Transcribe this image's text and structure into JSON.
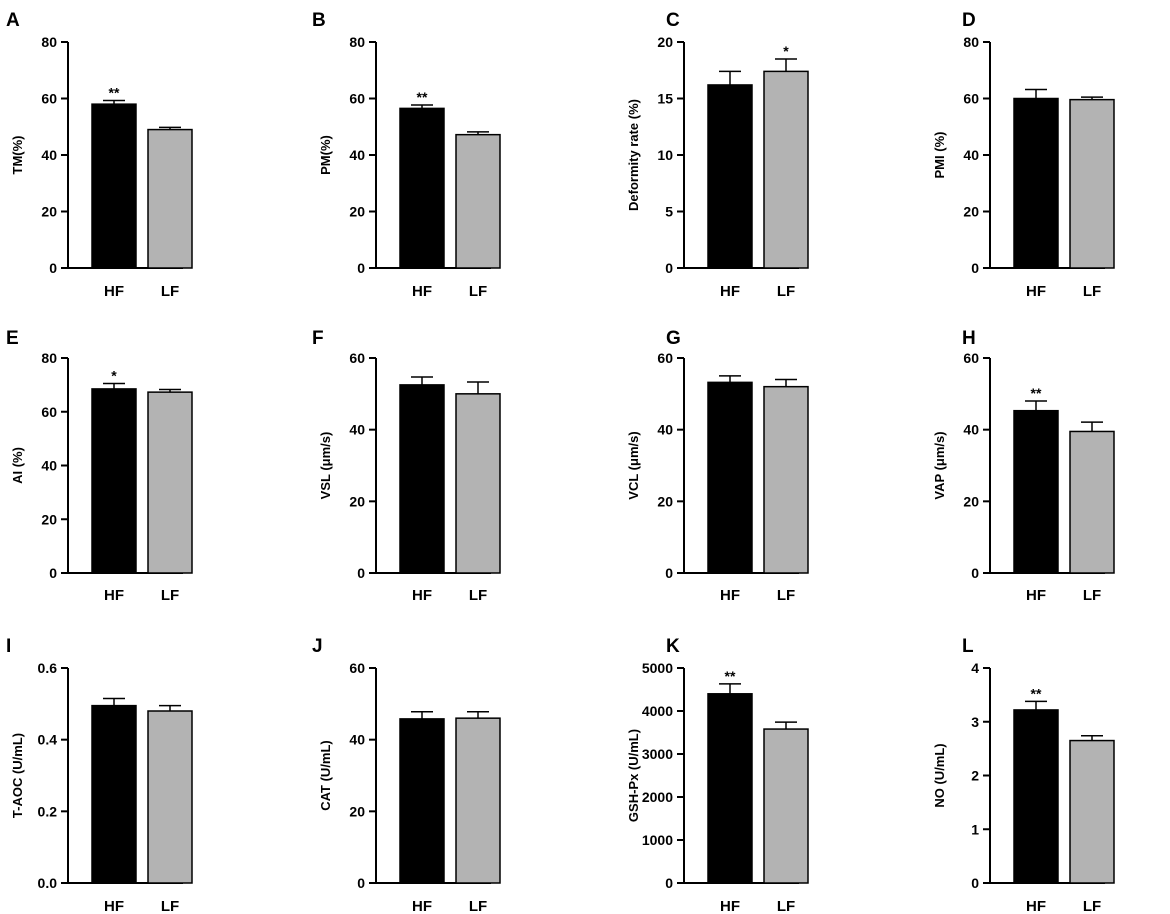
{
  "colors": {
    "HF": "#000000",
    "LF": "#b3b3b3",
    "axis": "#000000"
  },
  "chart_data": [
    {
      "letter": "A",
      "type": "bar",
      "ylabel": "TM(%)",
      "categories": [
        "HF",
        "LF"
      ],
      "values": [
        58,
        49
      ],
      "errors": [
        1.3,
        0.8
      ],
      "sig": [
        "**",
        ""
      ],
      "ylim": [
        0,
        80
      ],
      "yticks": [
        "0",
        "20",
        "40",
        "60",
        "80"
      ]
    },
    {
      "letter": "B",
      "type": "bar",
      "ylabel": "PM(%)",
      "categories": [
        "HF",
        "LF"
      ],
      "values": [
        56.5,
        47.2
      ],
      "errors": [
        1.2,
        1.0
      ],
      "sig": [
        "**",
        ""
      ],
      "ylim": [
        0,
        80
      ],
      "yticks": [
        "0",
        "20",
        "40",
        "60",
        "80"
      ]
    },
    {
      "letter": "C",
      "type": "bar",
      "ylabel": "Deformity rate  (%)",
      "categories": [
        "HF",
        "LF"
      ],
      "values": [
        16.2,
        17.4
      ],
      "errors": [
        1.2,
        1.1
      ],
      "sig": [
        "",
        "*"
      ],
      "ylim": [
        0,
        20
      ],
      "yticks": [
        "0",
        "5",
        "10",
        "15",
        "20"
      ]
    },
    {
      "letter": "D",
      "type": "bar",
      "ylabel": "PMI  (%)",
      "categories": [
        "HF",
        "LF"
      ],
      "values": [
        60,
        59.6
      ],
      "errors": [
        3.2,
        0.9
      ],
      "sig": [
        "",
        ""
      ],
      "ylim": [
        0,
        80
      ],
      "yticks": [
        "0",
        "20",
        "40",
        "60",
        "80"
      ]
    },
    {
      "letter": "E",
      "type": "bar",
      "ylabel": "AI  (%)",
      "categories": [
        "HF",
        "LF"
      ],
      "values": [
        68.5,
        67.3
      ],
      "errors": [
        2.0,
        1.0
      ],
      "sig": [
        "*",
        ""
      ],
      "ylim": [
        0,
        80
      ],
      "yticks": [
        "0",
        "20",
        "40",
        "60",
        "80"
      ]
    },
    {
      "letter": "F",
      "type": "bar",
      "ylabel": "VSL  (μm/s)",
      "categories": [
        "HF",
        "LF"
      ],
      "values": [
        52.5,
        50
      ],
      "errors": [
        2.2,
        3.3
      ],
      "sig": [
        "",
        ""
      ],
      "ylim": [
        0,
        60
      ],
      "yticks": [
        "0",
        "20",
        "40",
        "60"
      ]
    },
    {
      "letter": "G",
      "type": "bar",
      "ylabel": "VCL  (μm/s)",
      "categories": [
        "HF",
        "LF"
      ],
      "values": [
        53.2,
        52
      ],
      "errors": [
        1.8,
        2.0
      ],
      "sig": [
        "",
        ""
      ],
      "ylim": [
        0,
        60
      ],
      "yticks": [
        "0",
        "20",
        "40",
        "60"
      ]
    },
    {
      "letter": "H",
      "type": "bar",
      "ylabel": "VAP  (μm/s)",
      "categories": [
        "HF",
        "LF"
      ],
      "values": [
        45.3,
        39.5
      ],
      "errors": [
        2.7,
        2.6
      ],
      "sig": [
        "**",
        ""
      ],
      "ylim": [
        0,
        60
      ],
      "yticks": [
        "0",
        "20",
        "40",
        "60"
      ]
    },
    {
      "letter": "I",
      "type": "bar",
      "ylabel": "T-AOC  (U/mL)",
      "categories": [
        "HF",
        "LF"
      ],
      "values": [
        0.495,
        0.48
      ],
      "errors": [
        0.02,
        0.015
      ],
      "sig": [
        "",
        ""
      ],
      "ylim": [
        0,
        0.6
      ],
      "yticks": [
        "0.0",
        "0.2",
        "0.4",
        "0.6"
      ]
    },
    {
      "letter": "J",
      "type": "bar",
      "ylabel": "CAT  (U/mL)",
      "categories": [
        "HF",
        "LF"
      ],
      "values": [
        45.8,
        46
      ],
      "errors": [
        2.0,
        1.8
      ],
      "sig": [
        "",
        ""
      ],
      "ylim": [
        0,
        60
      ],
      "yticks": [
        "0",
        "20",
        "40",
        "60"
      ]
    },
    {
      "letter": "K",
      "type": "bar",
      "ylabel": "GSH-Px  (U/mL)",
      "categories": [
        "HF",
        "LF"
      ],
      "values": [
        4400,
        3580
      ],
      "errors": [
        230,
        160
      ],
      "sig": [
        "**",
        ""
      ],
      "ylim": [
        0,
        5000
      ],
      "yticks": [
        "0",
        "1000",
        "2000",
        "3000",
        "4000",
        "5000"
      ]
    },
    {
      "letter": "L",
      "type": "bar",
      "ylabel": "NO  (U/mL)",
      "categories": [
        "HF",
        "LF"
      ],
      "values": [
        3.22,
        2.65
      ],
      "errors": [
        0.16,
        0.09
      ],
      "sig": [
        "**",
        ""
      ],
      "ylim": [
        0,
        4
      ],
      "yticks": [
        "0",
        "1",
        "2",
        "3",
        "4"
      ]
    }
  ]
}
